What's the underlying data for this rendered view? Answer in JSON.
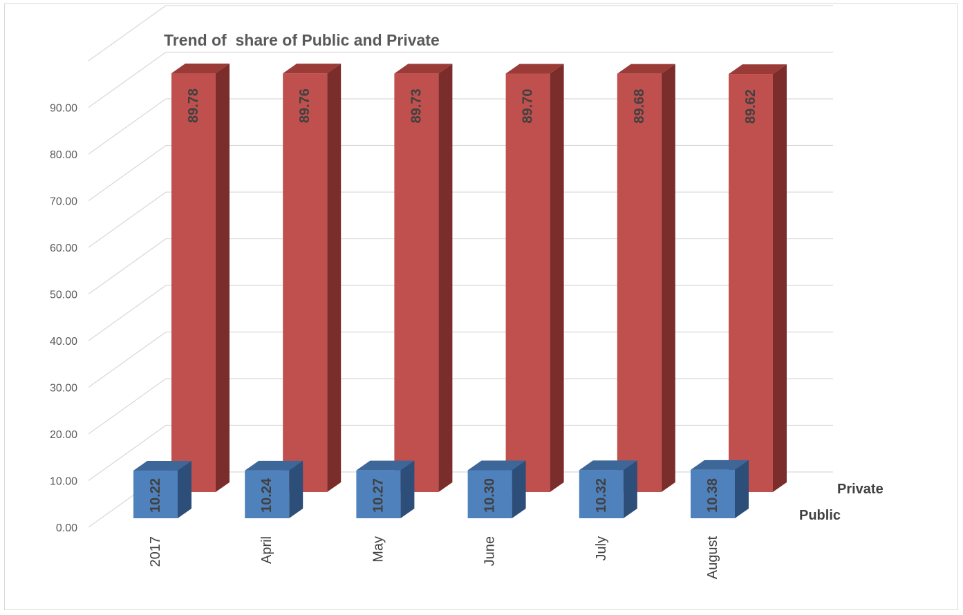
{
  "chart_data": {
    "type": "bar",
    "style": "3d-column",
    "title": "Trend of  share of Public and Private",
    "categories": [
      "2017",
      "April",
      "May",
      "June",
      "July",
      "August"
    ],
    "series": [
      {
        "name": "Public",
        "values": [
          10.22,
          10.24,
          10.27,
          10.3,
          10.32,
          10.38
        ],
        "color": "#4f81bd",
        "color_side": "#2e4e7a",
        "color_top": "#3d6699"
      },
      {
        "name": "Private",
        "values": [
          89.78,
          89.76,
          89.73,
          89.7,
          89.68,
          89.62
        ],
        "color": "#c0504d",
        "color_side": "#7a2d2b",
        "color_top": "#9b3b38"
      }
    ],
    "yticks": [
      "0.00",
      "10.00",
      "20.00",
      "30.00",
      "40.00",
      "50.00",
      "60.00",
      "70.00",
      "80.00",
      "90.00"
    ],
    "ylim": [
      0,
      90
    ],
    "xlabel": "",
    "ylabel": "",
    "grid": true,
    "legend": "series depth labels right"
  }
}
